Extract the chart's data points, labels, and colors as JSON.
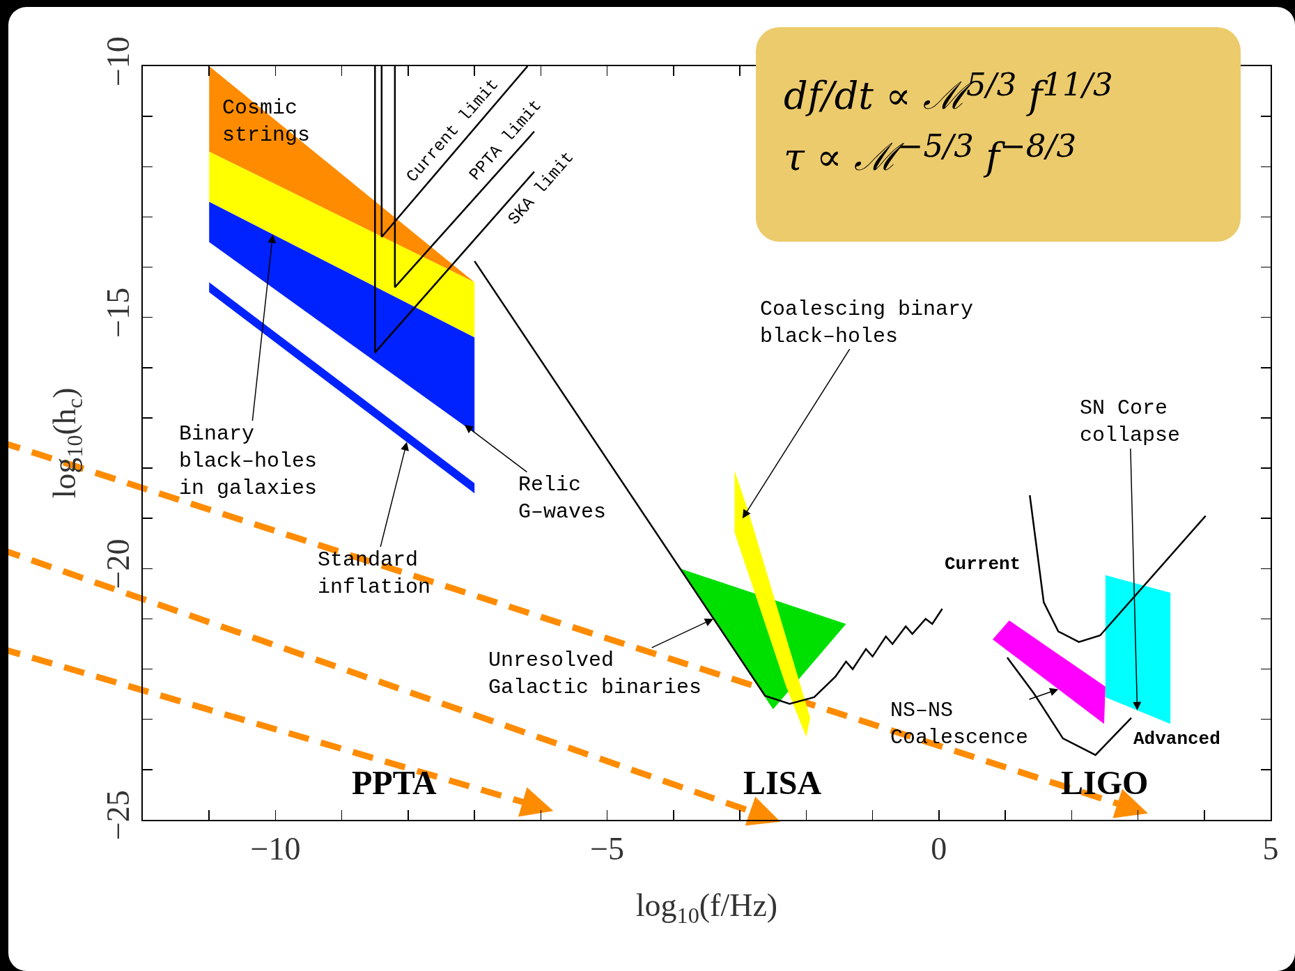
{
  "chart_data": {
    "type": "line",
    "xlabel": "log$_{10}$(f/Hz)",
    "ylabel": "log$_{10}$(h$_{c}$)",
    "xlim": [
      -12,
      5
    ],
    "ylim": [
      -25,
      -10
    ],
    "xticks": [
      {
        "value": -12,
        "label": null
      },
      {
        "value": -11,
        "label": null
      },
      -10,
      {
        "value": -9,
        "label": null
      },
      {
        "value": -8,
        "label": null
      },
      {
        "value": -7,
        "label": null
      },
      {
        "value": -6,
        "label": null
      },
      -5,
      {
        "value": -4,
        "label": null
      },
      {
        "value": -3,
        "label": null
      },
      {
        "value": -2,
        "label": null
      },
      {
        "value": -1,
        "label": null
      },
      0,
      {
        "value": 1,
        "label": null
      },
      {
        "value": 2,
        "label": null
      },
      {
        "value": 3,
        "label": null
      },
      {
        "value": 4,
        "label": null
      },
      5
    ],
    "yticks": [
      -25,
      {
        "value": -24,
        "label": null
      },
      {
        "value": -23,
        "label": null
      },
      {
        "value": -22,
        "label": null
      },
      {
        "value": -21,
        "label": null
      },
      -20,
      {
        "value": -19,
        "label": null
      },
      {
        "value": -18,
        "label": null
      },
      {
        "value": -17,
        "label": null
      },
      {
        "value": -16,
        "label": null
      },
      -15,
      {
        "value": -14,
        "label": null
      },
      {
        "value": -13,
        "label": null
      },
      {
        "value": -12,
        "label": null
      },
      {
        "value": -11,
        "label": null
      },
      -10
    ],
    "grid": false,
    "marker": "none",
    "line_style": "solid",
    "series": [
      {
        "type": "area",
        "color": "#ff8c00",
        "x": [
          -11,
          -7,
          -11
        ],
        "values": [
          -10,
          -14.3,
          -11.7
        ]
      },
      {
        "type": "area",
        "color": "#ffff00",
        "x": [
          -11,
          -7,
          -7,
          -11
        ],
        "values": [
          -11.7,
          -14.3,
          -15.4,
          -12.7
        ]
      },
      {
        "type": "area",
        "color": "#0022ff",
        "x": [
          -11,
          -7,
          -7,
          -11
        ],
        "values": [
          -12.7,
          -15.4,
          -17.3,
          -13.5
        ]
      },
      {
        "type": "area",
        "color": "#0022ff",
        "x": [
          -11,
          -7,
          -7,
          -11
        ],
        "values": [
          -14.3,
          -18.3,
          -18.5,
          -14.5
        ]
      },
      {
        "type": "area",
        "color": "#00e000",
        "x": [
          -3.9,
          -1.4,
          -2.5
        ],
        "values": [
          -20,
          -21.1,
          -22.8
        ]
      },
      {
        "type": "area",
        "color": "#ffff00",
        "x": [
          -3.08,
          -2.87,
          -1.94,
          -2.0,
          -2.31,
          -3.08
        ],
        "values": [
          -18.05,
          -18.87,
          -22.97,
          -23.35,
          -22.32,
          -19.28
        ]
      },
      {
        "type": "area",
        "color": "#ff00ff",
        "x": [
          0.81,
          1.06,
          2.51,
          2.49
        ],
        "values": [
          -21.41,
          -21.03,
          -22.35,
          -23.09
        ]
      },
      {
        "type": "area",
        "color": "#00ffff",
        "x": [
          2.51,
          3.49,
          3.49,
          2.51
        ],
        "values": [
          -20.13,
          -20.48,
          -23.09,
          -22.56
        ]
      },
      {
        "color": "#000000",
        "x": [
          -8.4,
          -8.4,
          -6.2
        ],
        "values": [
          -10,
          -13.4,
          -10
        ]
      },
      {
        "color": "#000000",
        "x": [
          -8.2,
          -8.2,
          -6.1
        ],
        "values": [
          -10,
          -14.4,
          -11.3
        ]
      },
      {
        "color": "#000000",
        "x": [
          -8.5,
          -8.5,
          -6.1
        ],
        "values": [
          -10,
          -15.7,
          -12.1
        ]
      },
      {
        "color": "#000000",
        "x": [
          -7,
          -2.62,
          -2.25,
          -1.88,
          -1.56,
          -1.4,
          -1.3,
          -1.1,
          -1.0,
          -0.8,
          -0.7,
          -0.5,
          -0.4,
          -0.2,
          -0.1,
          0.05
        ],
        "values": [
          -13.88,
          -22.53,
          -22.69,
          -22.56,
          -22.15,
          -21.85,
          -22.0,
          -21.6,
          -21.75,
          -21.35,
          -21.5,
          -21.15,
          -21.3,
          -21.0,
          -21.1,
          -20.8
        ]
      },
      {
        "color": "#000000",
        "x": [
          1.37,
          1.58,
          1.8,
          2.11,
          2.43,
          4.02
        ],
        "values": [
          -18.54,
          -20.67,
          -21.25,
          -21.46,
          -21.33,
          -18.95
        ]
      },
      {
        "color": "#000000",
        "x": [
          1.03,
          1.43,
          1.87,
          2.36,
          2.9
        ],
        "values": [
          -21.77,
          -22.48,
          -23.38,
          -23.71,
          -22.97
        ]
      }
    ],
    "annotations": [
      "Cosmic\nstrings",
      {
        "text": "Binary\nblack–holes\nin galaxies",
        "x": -10.04,
        "y": -13.35
      },
      {
        "text": "Standard\ninflation",
        "x": -8.02,
        "y": -17.48
      },
      {
        "text": "Relic\nG–waves",
        "x": -7.15,
        "y": -17.14
      },
      "Current limit",
      "PPTA limit",
      "SKA limit",
      {
        "text": "Coalescing binary\nblack–holes",
        "x": -2.96,
        "y": -19.0
      },
      {
        "text": "Unresolved\nGalactic binaries",
        "x": -3.4,
        "y": -21.0
      },
      {
        "text": "NS–NS\nCoalescence",
        "x": 1.8,
        "y": -22.4
      },
      {
        "text": "SN Core\ncollapse",
        "x": 2.99,
        "y": -22.82
      },
      "Current",
      "Advanced",
      "PPTA",
      "LISA",
      "LIGO",
      "df/dt ∝ ℳ$^{5/3}$ f$^{11/3}$",
      "τ ∝ ℳ$^{−5/3}$ f$^{−8/3}$"
    ]
  }
}
